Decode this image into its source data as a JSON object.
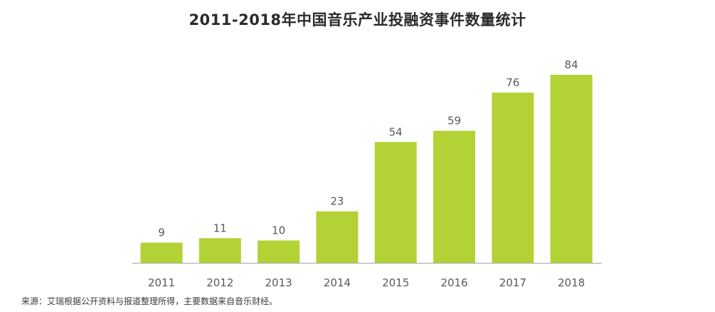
{
  "chart_data": {
    "type": "bar",
    "title": "2011-2018年中国音乐产业投融资事件数量统计",
    "categories": [
      "2011",
      "2012",
      "2013",
      "2014",
      "2015",
      "2016",
      "2017",
      "2018"
    ],
    "values": [
      9,
      11,
      10,
      23,
      54,
      59,
      76,
      84
    ],
    "xlabel": "",
    "ylabel": "",
    "ylim": [
      0,
      84
    ],
    "grid": false,
    "legend": "none",
    "bar_color": "#b2d235",
    "axis_color": "#a6a6a6",
    "label_color": "#595959"
  },
  "source": "来源：艾瑞根据公开资料与报道整理所得，主要数据来自音乐财经。"
}
